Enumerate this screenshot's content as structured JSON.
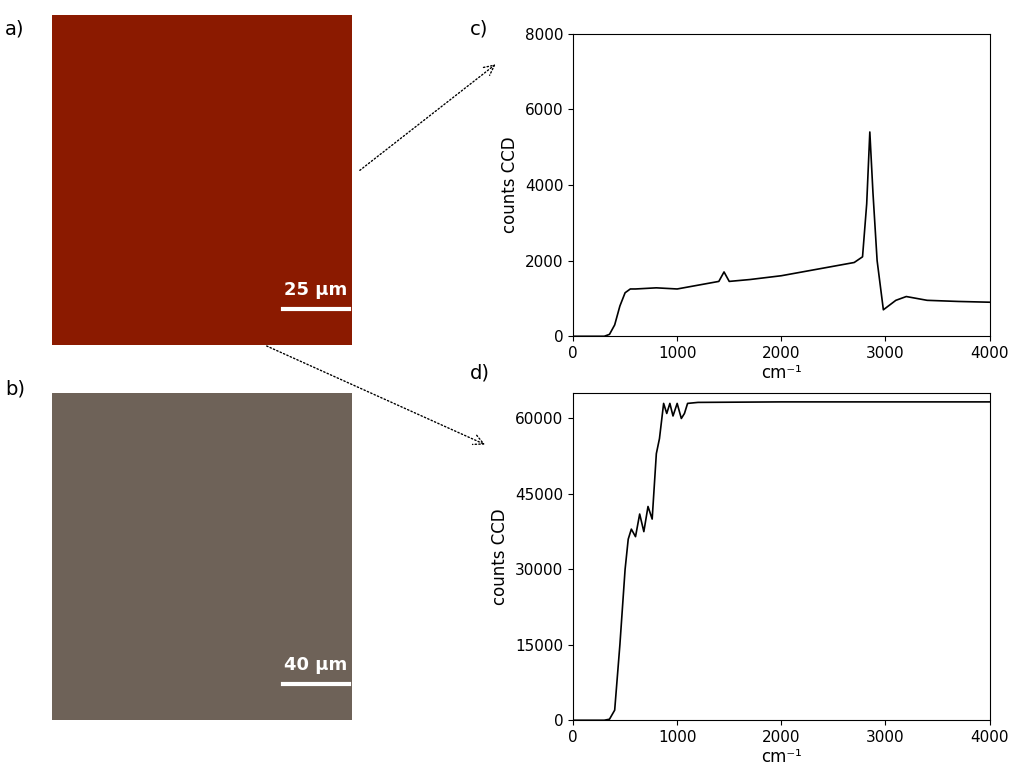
{
  "images": [
    {
      "panel": "a)",
      "scale_bar": "25 µm"
    },
    {
      "panel": "b)",
      "scale_bar": "40 µm"
    }
  ],
  "chart_data": [
    {
      "type": "line",
      "panel": "c)",
      "x_label": "cm⁻¹",
      "y_label": "counts CCD",
      "color": "#000000",
      "x": [
        0,
        300,
        350,
        400,
        450,
        500,
        550,
        600,
        800,
        1000,
        1200,
        1400,
        1450,
        1500,
        1700,
        2000,
        2300,
        2500,
        2700,
        2780,
        2820,
        2850,
        2880,
        2920,
        2980,
        3100,
        3200,
        3400,
        3700,
        4000
      ],
      "values": [
        0,
        0,
        50,
        300,
        800,
        1150,
        1250,
        1250,
        1280,
        1250,
        1350,
        1450,
        1700,
        1450,
        1500,
        1600,
        1750,
        1850,
        1950,
        2100,
        3500,
        5400,
        3800,
        2000,
        700,
        950,
        1050,
        950,
        920,
        900
      ],
      "xlim": [
        0,
        4000
      ],
      "ylim": [
        0,
        8000
      ],
      "xticks": [
        0,
        1000,
        2000,
        3000,
        4000
      ],
      "yticks": [
        0,
        2000,
        4000,
        6000,
        8000
      ]
    },
    {
      "type": "line",
      "panel": "d)",
      "x_label": "cm⁻¹",
      "y_label": "counts CCD",
      "color": "#000000",
      "x": [
        0,
        300,
        350,
        400,
        450,
        500,
        530,
        560,
        600,
        640,
        680,
        720,
        760,
        800,
        830,
        870,
        900,
        930,
        960,
        1000,
        1040,
        1070,
        1100,
        1200,
        2000,
        3000,
        4000
      ],
      "values": [
        0,
        0,
        200,
        2000,
        15000,
        30000,
        36000,
        38000,
        36500,
        41000,
        37500,
        42500,
        40000,
        53000,
        56000,
        63000,
        61000,
        63000,
        60500,
        63000,
        60000,
        61000,
        63000,
        63200,
        63300,
        63300,
        63300
      ],
      "xlim": [
        0,
        4000
      ],
      "ylim": [
        0,
        65000
      ],
      "xticks": [
        0,
        1000,
        2000,
        3000,
        4000
      ],
      "yticks": [
        0,
        15000,
        30000,
        45000,
        60000
      ]
    }
  ]
}
